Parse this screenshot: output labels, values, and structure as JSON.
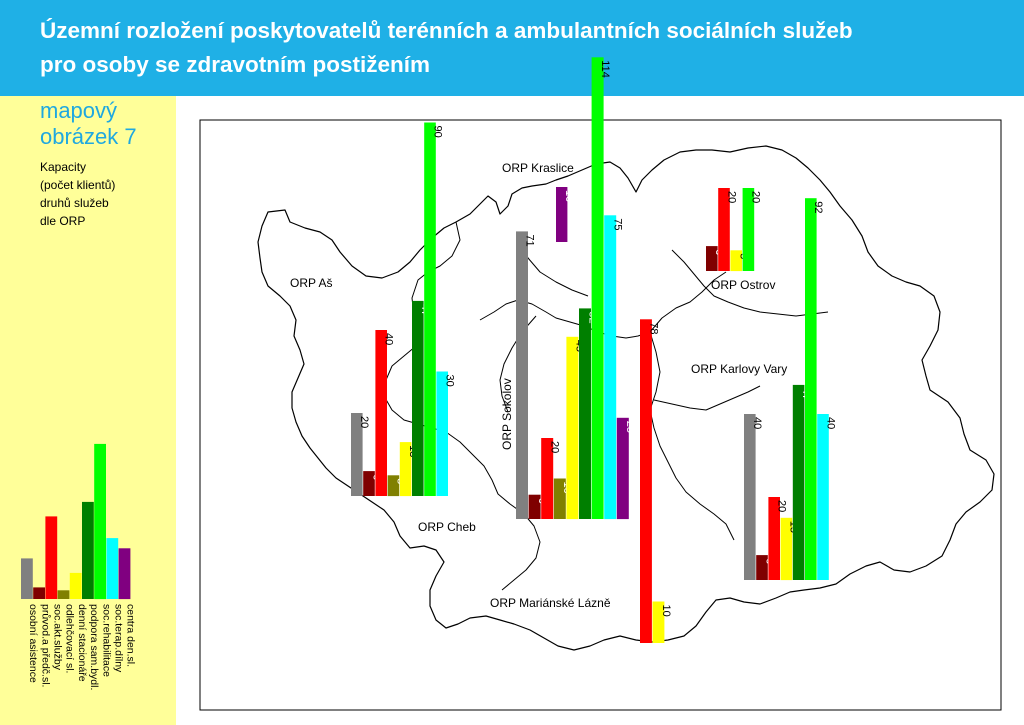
{
  "header": {
    "title_line1": "Územní rozložení poskytovatelů terénních a ambulantních sociálních služeb",
    "title_line2": "pro osoby se zdravotním postižením"
  },
  "sidebar": {
    "map_label_line1": "mapový",
    "map_label_line2": "obrázek 7",
    "caption_lines": [
      "Kapacity",
      "(počet klientů)",
      "druhů služeb",
      "dle ORP"
    ]
  },
  "legend": {
    "items": [
      {
        "label": "osobní asistence",
        "color": "#808080"
      },
      {
        "label": "průvod.a předč.sl.",
        "color": "#7f0000"
      },
      {
        "label": "soc.akt.služby",
        "color": "#ff0000"
      },
      {
        "label": "odlehčovací sl.",
        "color": "#808000"
      },
      {
        "label": "denní stacionáře",
        "color": "#ffff00"
      },
      {
        "label": "podpora sam.bydl.",
        "color": "#007f00"
      },
      {
        "label": "soc.rehabilitace",
        "color": "#00ff00"
      },
      {
        "label": "soc.terap.dílny",
        "color": "#00ffff"
      },
      {
        "label": "centra den.sl.",
        "color": "#800080"
      }
    ],
    "sample_values": [
      28,
      8,
      57,
      6,
      18,
      67,
      107,
      42,
      35
    ]
  },
  "chart_data": {
    "type": "bar",
    "title": "Územní rozložení poskytovatelů terénních a ambulantních sociálních služeb pro osoby se zdravotním postižením",
    "series_categories": [
      "osobní asistence",
      "průvod.a předč.sl.",
      "soc.akt.služby",
      "odlehčovací sl.",
      "denní stacionáře",
      "podpora sam.bydl.",
      "soc.rehabilitace",
      "soc.terap.dílny",
      "centra den.sl."
    ],
    "regions": [
      {
        "name": "ORP Aš",
        "bars": []
      },
      {
        "name": "ORP Cheb",
        "bars": [
          {
            "category": "osobní asistence",
            "value": 20
          },
          {
            "category": "průvod.a předč.sl.",
            "value": 6
          },
          {
            "category": "soc.akt.služby",
            "value": 40
          },
          {
            "category": "odlehčovací sl.",
            "value": 5
          },
          {
            "category": "denní stacionáře",
            "value": 13
          },
          {
            "category": "podpora sam.bydl.",
            "value": 47
          },
          {
            "category": "soc.rehabilitace",
            "value": 90
          },
          {
            "category": "soc.terap.dílny",
            "value": 30
          }
        ]
      },
      {
        "name": "ORP Kraslice",
        "bars": [
          {
            "category": "centra den.sl.",
            "value": 10
          }
        ]
      },
      {
        "name": "ORP Sokolov",
        "bars": [
          {
            "category": "osobní asistence",
            "value": 71
          },
          {
            "category": "průvod.a předč.sl.",
            "value": 6
          },
          {
            "category": "soc.akt.služby",
            "value": 20
          },
          {
            "category": "odlehčovací sl.",
            "value": 10
          },
          {
            "category": "denní stacionáře",
            "value": 45
          },
          {
            "category": "podpora sam.bydl.",
            "value": 52
          },
          {
            "category": "soc.rehabilitace",
            "value": 114
          },
          {
            "category": "soc.terap.dílny",
            "value": 75
          },
          {
            "category": "centra den.sl.",
            "value": 25
          }
        ]
      },
      {
        "name": "ORP Ostrov",
        "bars": [
          {
            "category": "průvod.a předč.sl.",
            "value": 6
          },
          {
            "category": "soc.akt.služby",
            "value": 20
          },
          {
            "category": "denní stacionáře",
            "value": 5
          },
          {
            "category": "soc.rehabilitace",
            "value": 20
          }
        ]
      },
      {
        "name": "ORP Karlovy Vary",
        "bars": [
          {
            "category": "osobní asistence",
            "value": 40
          },
          {
            "category": "průvod.a předč.sl.",
            "value": 6
          },
          {
            "category": "soc.akt.služby",
            "value": 20
          },
          {
            "category": "denní stacionáře",
            "value": 15
          },
          {
            "category": "podpora sam.bydl.",
            "value": 47
          },
          {
            "category": "soc.rehabilitace",
            "value": 92
          },
          {
            "category": "soc.terap.dílny",
            "value": 40
          }
        ]
      },
      {
        "name": "ORP Mariánské Lázně",
        "bars": [
          {
            "category": "soc.akt.služby",
            "value": 78
          },
          {
            "category": "denní stacionáře",
            "value": 10
          }
        ]
      }
    ]
  }
}
